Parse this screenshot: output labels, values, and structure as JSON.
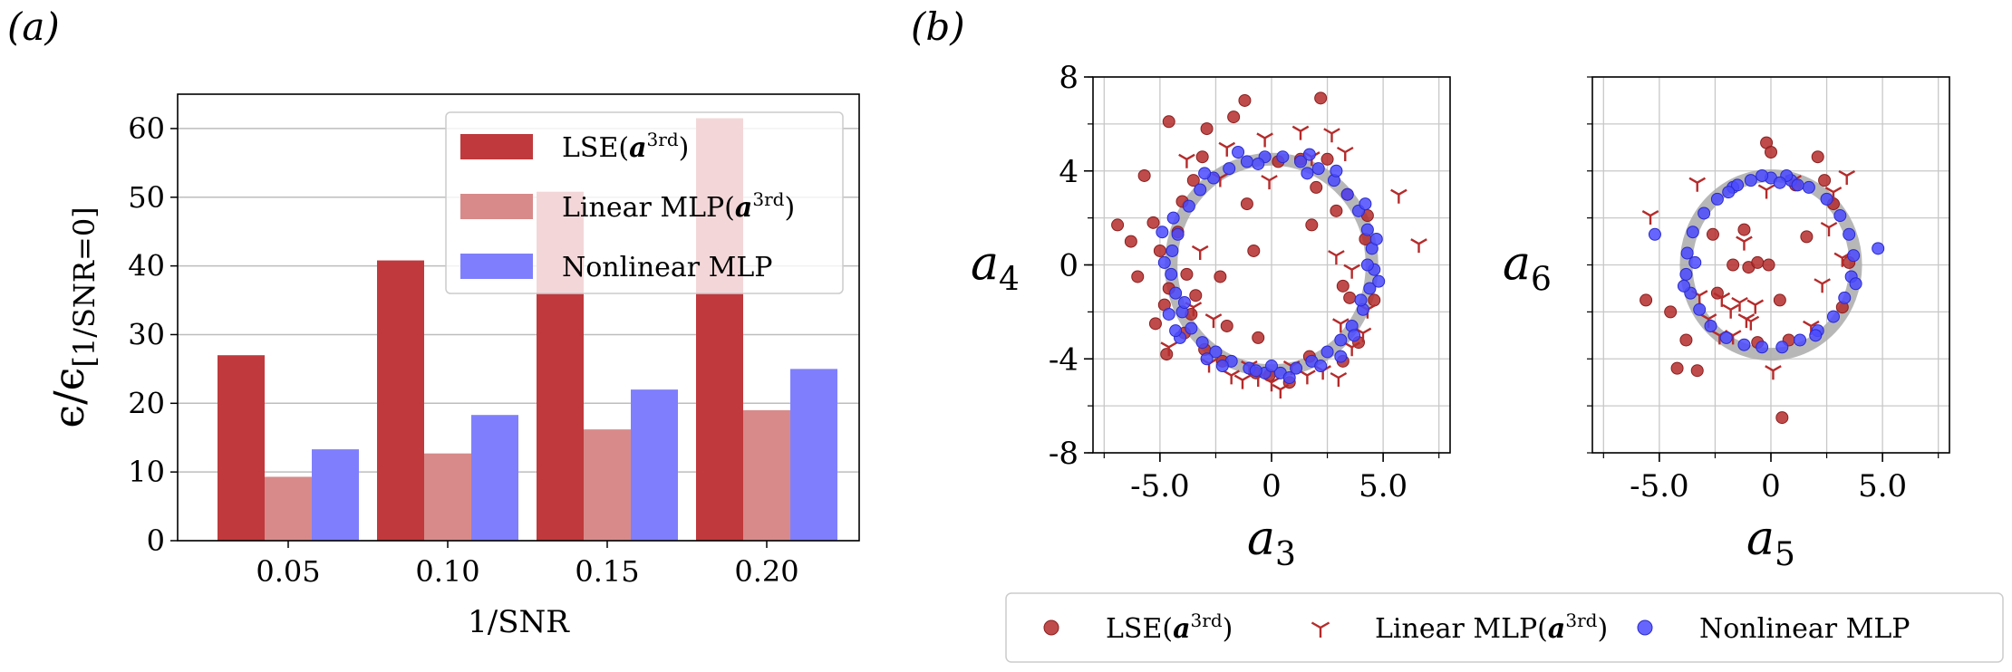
{
  "panels": {
    "a_label": "(a)",
    "b_label": "(b)"
  },
  "chart_data": [
    {
      "type": "bar",
      "panel": "(a)",
      "categories": [
        "0.05",
        "0.10",
        "0.15",
        "0.20"
      ],
      "xlabel": "1/SNR",
      "ylabel": "ϵ/ϵ[1/SNR=0]",
      "ylabel_main": "ϵ/ϵ",
      "ylabel_sub": "[1/SNR=0]",
      "ylim": [
        0,
        65
      ],
      "yticks": [
        "0",
        "10",
        "20",
        "30",
        "40",
        "50",
        "60"
      ],
      "grid": "y",
      "legend_position": "top-right",
      "series": [
        {
          "name": "LSE(a3rd)",
          "label_main": "LSE(",
          "label_bold": "a",
          "label_sup": "3rd",
          "label_end": ")",
          "color": "#c0393c",
          "values": [
            27,
            40.8,
            50.8,
            61.5
          ]
        },
        {
          "name": "Linear MLP(a3rd)",
          "label_main": "Linear MLP(",
          "label_bold": "a",
          "label_sup": "3rd",
          "label_end": ")",
          "color": "#d88a8a",
          "values": [
            9.3,
            12.7,
            16.2,
            19.0
          ]
        },
        {
          "name": "Nonlinear MLP",
          "label_main": "Nonlinear MLP",
          "label_bold": "",
          "label_sup": "",
          "label_end": "",
          "color": "#7f7ffd",
          "values": [
            13.3,
            18.3,
            22.0,
            25.0
          ]
        }
      ]
    },
    {
      "type": "scatter",
      "panel": "(b) left",
      "xlabel_main": "a",
      "xlabel_sub": "3",
      "ylabel_main": "a",
      "ylabel_sub": "4",
      "xlim": [
        -8,
        8
      ],
      "ylim": [
        -8,
        8
      ],
      "xticks": [
        "-5.0",
        "0",
        "5.0"
      ],
      "yticks": [
        "8",
        "4",
        "0",
        "-4",
        "-8"
      ],
      "reference_circle": {
        "cx": 0,
        "cy": 0,
        "r": 4.5,
        "color": "#aaaaaa"
      },
      "series": [
        {
          "name": "LSE(a3rd)",
          "marker": "circle",
          "color": "#b52b2b",
          "points": [
            [
              -6.9,
              1.7
            ],
            [
              -6.3,
              1.0
            ],
            [
              -6.0,
              -0.5
            ],
            [
              -5.7,
              3.8
            ],
            [
              -5.3,
              1.8
            ],
            [
              -5.0,
              0.6
            ],
            [
              -4.8,
              -1.7
            ],
            [
              -5.2,
              -2.5
            ],
            [
              -4.6,
              -1.0
            ],
            [
              -4.7,
              -3.8
            ],
            [
              -4.2,
              1.4
            ],
            [
              -4.0,
              2.7
            ],
            [
              -3.8,
              -0.4
            ],
            [
              -3.6,
              -2.1
            ],
            [
              -3.9,
              -2.9
            ],
            [
              -3.5,
              3.6
            ],
            [
              -3.1,
              4.6
            ],
            [
              -3.0,
              -3.6
            ],
            [
              -2.3,
              -0.5
            ],
            [
              -2.0,
              -2.6
            ],
            [
              -1.7,
              6.3
            ],
            [
              -1.1,
              2.6
            ],
            [
              -0.8,
              0.6
            ],
            [
              -0.6,
              -3.1
            ],
            [
              -0.1,
              -4.7
            ],
            [
              0.8,
              -5.0
            ],
            [
              1.3,
              4.5
            ],
            [
              1.8,
              1.7
            ],
            [
              2.0,
              3.3
            ],
            [
              2.2,
              7.1
            ],
            [
              2.5,
              4.5
            ],
            [
              2.9,
              2.3
            ],
            [
              3.2,
              -0.9
            ],
            [
              3.5,
              -1.4
            ],
            [
              3.9,
              -3.3
            ],
            [
              4.2,
              1.1
            ],
            [
              4.6,
              -1.5
            ],
            [
              -1.2,
              7.0
            ],
            [
              -4.6,
              6.1
            ],
            [
              -2.9,
              5.8
            ],
            [
              -0.7,
              -4.6
            ],
            [
              3.2,
              -4.1
            ],
            [
              1.7,
              -3.9
            ],
            [
              0.3,
              4.4
            ],
            [
              -2.2,
              -4.1
            ],
            [
              -3.4,
              -1.3
            ],
            [
              4.3,
              2.1
            ],
            [
              3.4,
              3.0
            ]
          ]
        },
        {
          "name": "Linear MLP(a3rd)",
          "marker": "tri_down",
          "color": "#b52b2b",
          "points": [
            [
              -4.6,
              -3.5
            ],
            [
              -3.8,
              4.5
            ],
            [
              -3.5,
              -1.8
            ],
            [
              -3.2,
              0.6
            ],
            [
              -2.8,
              -4.2
            ],
            [
              -2.6,
              -2.3
            ],
            [
              -2.3,
              3.7
            ],
            [
              -1.8,
              -4.7
            ],
            [
              -1.0,
              -4.3
            ],
            [
              -0.6,
              -4.8
            ],
            [
              -0.3,
              5.4
            ],
            [
              0.4,
              -5.3
            ],
            [
              0.9,
              -4.3
            ],
            [
              1.3,
              5.7
            ],
            [
              1.6,
              -4.7
            ],
            [
              2.3,
              -4.5
            ],
            [
              2.7,
              5.6
            ],
            [
              3.1,
              -2.5
            ],
            [
              3.3,
              4.8
            ],
            [
              4.3,
              -1.9
            ],
            [
              5.7,
              3.0
            ],
            [
              6.6,
              0.9
            ],
            [
              3.0,
              -4.8
            ],
            [
              -1.3,
              -4.9
            ],
            [
              3.6,
              -0.2
            ],
            [
              2.9,
              0.4
            ],
            [
              -0.1,
              3.6
            ],
            [
              3.6,
              -3.5
            ],
            [
              4.1,
              -2.9
            ],
            [
              -2.0,
              5.0
            ],
            [
              1.8,
              4.6
            ],
            [
              0.0,
              -5.0
            ]
          ]
        },
        {
          "name": "Nonlinear MLP",
          "marker": "circle",
          "color": "#4b4bff",
          "points": [
            [
              -4.2,
              1.3
            ],
            [
              -4.45,
              0.6
            ],
            [
              -4.5,
              -0.4
            ],
            [
              -4.3,
              -1.2
            ],
            [
              -4.0,
              -2.0
            ],
            [
              -3.6,
              -2.7
            ],
            [
              -3.1,
              -3.3
            ],
            [
              -2.5,
              -3.7
            ],
            [
              -1.8,
              -4.1
            ],
            [
              -1.0,
              -4.4
            ],
            [
              -0.3,
              -4.6
            ],
            [
              0.4,
              -4.6
            ],
            [
              1.1,
              -4.4
            ],
            [
              1.8,
              -4.1
            ],
            [
              2.5,
              -3.7
            ],
            [
              3.1,
              -3.2
            ],
            [
              3.6,
              -2.6
            ],
            [
              4.1,
              -1.9
            ],
            [
              4.4,
              -1.0
            ],
            [
              4.6,
              -0.2
            ],
            [
              4.5,
              0.7
            ],
            [
              4.3,
              1.5
            ],
            [
              3.9,
              2.3
            ],
            [
              3.4,
              3.0
            ],
            [
              2.8,
              3.6
            ],
            [
              2.1,
              4.1
            ],
            [
              1.3,
              4.4
            ],
            [
              0.5,
              4.6
            ],
            [
              -0.3,
              4.6
            ],
            [
              -1.1,
              4.4
            ],
            [
              -1.9,
              4.1
            ],
            [
              -2.6,
              3.7
            ],
            [
              -3.2,
              3.2
            ],
            [
              -3.7,
              2.5
            ],
            [
              -4.6,
              -2.1
            ],
            [
              -4.9,
              1.4
            ],
            [
              -4.1,
              -3.1
            ],
            [
              -2.2,
              -4.3
            ],
            [
              0.8,
              -4.8
            ],
            [
              2.2,
              -4.3
            ],
            [
              3.7,
              -3.0
            ],
            [
              4.8,
              -0.7
            ],
            [
              4.7,
              1.1
            ],
            [
              4.2,
              2.6
            ],
            [
              1.7,
              4.7
            ],
            [
              -1.5,
              4.8
            ],
            [
              -3.0,
              3.9
            ],
            [
              -4.8,
              0.1
            ],
            [
              0.0,
              -4.3
            ],
            [
              -0.7,
              -4.5
            ],
            [
              3.1,
              -3.9
            ],
            [
              4.0,
              -1.5
            ],
            [
              -3.9,
              -1.6
            ],
            [
              -4.4,
              2.0
            ],
            [
              1.6,
              3.9
            ],
            [
              -0.6,
              4.3
            ],
            [
              -4.3,
              -2.8
            ],
            [
              4.3,
              0.0
            ],
            [
              -2.9,
              -4.0
            ],
            [
              2.9,
              4.0
            ]
          ]
        }
      ]
    },
    {
      "type": "scatter",
      "panel": "(b) right",
      "xlabel_main": "a",
      "xlabel_sub": "5",
      "ylabel_main": "a",
      "ylabel_sub": "6",
      "xlim": [
        -8,
        8
      ],
      "ylim": [
        -8,
        8
      ],
      "xticks": [
        "-5.0",
        "0",
        "5.0"
      ],
      "reference_circle": {
        "cx": 0,
        "cy": 0,
        "r": 3.8,
        "color": "#aaaaaa"
      },
      "series": [
        {
          "name": "LSE(a3rd)",
          "marker": "circle",
          "color": "#b52b2b",
          "points": [
            [
              -5.6,
              -1.5
            ],
            [
              -4.5,
              -2.0
            ],
            [
              -4.2,
              -4.4
            ],
            [
              -3.8,
              -3.2
            ],
            [
              -3.3,
              -4.5
            ],
            [
              -2.6,
              1.3
            ],
            [
              -2.4,
              -1.2
            ],
            [
              -1.7,
              0.0
            ],
            [
              -1.2,
              1.5
            ],
            [
              -1.0,
              -0.1
            ],
            [
              -0.6,
              0.1
            ],
            [
              -0.2,
              5.2
            ],
            [
              0.0,
              4.8
            ],
            [
              0.4,
              -1.5
            ],
            [
              0.5,
              -6.5
            ],
            [
              0.8,
              -3.2
            ],
            [
              1.1,
              3.4
            ],
            [
              1.6,
              1.2
            ],
            [
              2.1,
              4.6
            ],
            [
              2.4,
              3.6
            ],
            [
              2.8,
              2.6
            ],
            [
              3.2,
              -1.8
            ],
            [
              3.5,
              0.1
            ],
            [
              -0.6,
              -3.3
            ],
            [
              -0.1,
              0.0
            ]
          ]
        },
        {
          "name": "Linear MLP(a3rd)",
          "marker": "tri_down",
          "color": "#b52b2b",
          "points": [
            [
              -5.4,
              2.1
            ],
            [
              -3.3,
              3.5
            ],
            [
              -3.2,
              -1.3
            ],
            [
              -2.8,
              -2.3
            ],
            [
              -2.3,
              -3.0
            ],
            [
              -2.2,
              -1.4
            ],
            [
              -1.8,
              -1.9
            ],
            [
              -1.4,
              -1.6
            ],
            [
              -1.2,
              1.0
            ],
            [
              -0.9,
              -2.4
            ],
            [
              -0.7,
              -1.7
            ],
            [
              -0.2,
              3.2
            ],
            [
              1.0,
              3.6
            ],
            [
              1.8,
              -2.6
            ],
            [
              2.3,
              -0.8
            ],
            [
              2.6,
              1.6
            ],
            [
              2.8,
              3.1
            ],
            [
              3.4,
              3.8
            ],
            [
              0.1,
              -4.5
            ],
            [
              -1.7,
              -3.0
            ],
            [
              -1.1,
              -2.3
            ],
            [
              3.2,
              0.3
            ]
          ]
        },
        {
          "name": "Nonlinear MLP",
          "marker": "circle",
          "color": "#4b4bff",
          "points": [
            [
              -3.5,
              1.4
            ],
            [
              -3.75,
              0.5
            ],
            [
              -3.8,
              -0.4
            ],
            [
              -3.6,
              -1.2
            ],
            [
              -3.2,
              -1.9
            ],
            [
              -2.7,
              -2.6
            ],
            [
              -2.0,
              -3.1
            ],
            [
              -1.2,
              -3.4
            ],
            [
              -0.4,
              -3.5
            ],
            [
              0.5,
              -3.5
            ],
            [
              1.3,
              -3.2
            ],
            [
              2.1,
              -2.8
            ],
            [
              2.8,
              -2.2
            ],
            [
              3.3,
              -1.4
            ],
            [
              3.6,
              -0.5
            ],
            [
              3.7,
              0.4
            ],
            [
              3.5,
              1.3
            ],
            [
              3.1,
              2.1
            ],
            [
              2.5,
              2.8
            ],
            [
              1.7,
              3.3
            ],
            [
              0.9,
              3.6
            ],
            [
              0.0,
              3.7
            ],
            [
              -0.9,
              3.6
            ],
            [
              -1.7,
              3.3
            ],
            [
              -2.4,
              2.8
            ],
            [
              -3.0,
              2.2
            ],
            [
              -5.2,
              1.3
            ],
            [
              4.8,
              0.7
            ],
            [
              0.7,
              3.8
            ],
            [
              -1.5,
              3.4
            ],
            [
              -3.9,
              -0.9
            ],
            [
              3.8,
              -0.8
            ],
            [
              -1.9,
              3.1
            ],
            [
              1.2,
              3.4
            ],
            [
              -0.4,
              3.8
            ],
            [
              0.4,
              3.5
            ],
            [
              -3.4,
              0.1
            ],
            [
              2.0,
              -3.0
            ]
          ]
        }
      ]
    }
  ]
}
